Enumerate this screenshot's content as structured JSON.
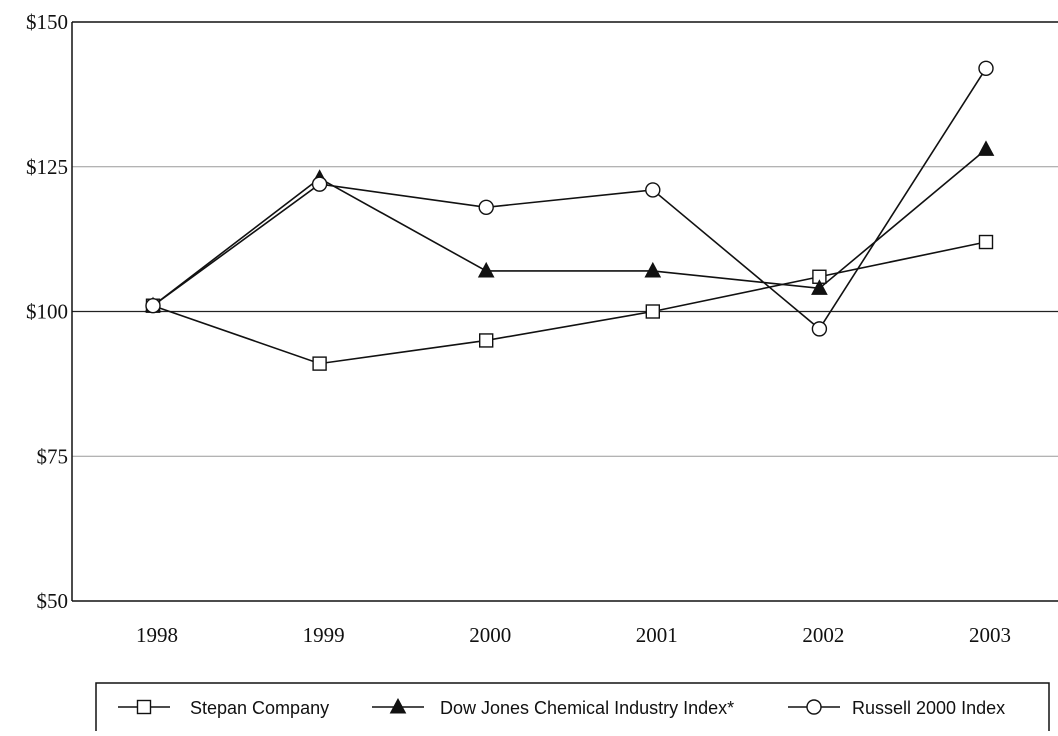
{
  "chart_data": {
    "type": "line",
    "categories": [
      "1998",
      "1999",
      "2000",
      "2001",
      "2002",
      "2003"
    ],
    "y_ticks": [
      {
        "value": 50,
        "label": "$50"
      },
      {
        "value": 75,
        "label": "$75"
      },
      {
        "value": 100,
        "label": "$100"
      },
      {
        "value": 125,
        "label": "$125"
      },
      {
        "value": 150,
        "label": "$150"
      }
    ],
    "ylim": [
      50,
      150
    ],
    "grid": "horizontal",
    "legend_position": "bottom",
    "series": [
      {
        "name": "Stepan Company",
        "marker": "open-square",
        "values": [
          101,
          91,
          95,
          100,
          106,
          112
        ]
      },
      {
        "name": "Dow Jones Chemical Industry Index*",
        "marker": "filled-triangle",
        "values": [
          101,
          123,
          107,
          107,
          104,
          128
        ]
      },
      {
        "name": "Russell 2000 Index",
        "marker": "open-circle",
        "values": [
          101,
          122,
          118,
          121,
          97,
          142
        ]
      }
    ]
  }
}
